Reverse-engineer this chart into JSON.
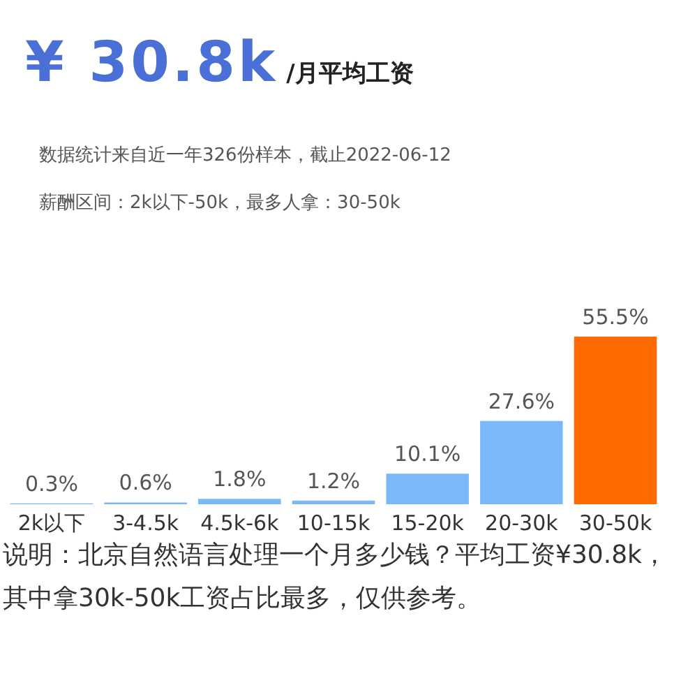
{
  "chart_data": {
    "type": "bar",
    "title": "¥ 30.8k/月平均工资",
    "subtitle": "数据统计来自近一年326份样本，截止2022-06-12",
    "annotations": [
      "薪酬区间：2k以下-50k，最多人拿：30-50k",
      "说明：北京自然语言处理一个月多少钱？平均工资¥30.8k，其中拿30k-50k工资占比最多，仅供参考。"
    ],
    "categories": [
      "2k以下",
      "3-4.5k",
      "4.5k-6k",
      "10-15k",
      "15-20k",
      "20-30k",
      "30-50k"
    ],
    "values": [
      0.3,
      0.6,
      1.8,
      1.2,
      10.1,
      27.6,
      55.5
    ],
    "colors": [
      "#7ab8f9",
      "#7ab8f9",
      "#7ab8f9",
      "#7ab8f9",
      "#7ab8f9",
      "#7ab8f9",
      "#ff6a00"
    ],
    "value_labels": [
      "0.3%",
      "0.6%",
      "1.8%",
      "1.2%",
      "10.1%",
      "27.6%",
      "55.5%"
    ]
  }
}
